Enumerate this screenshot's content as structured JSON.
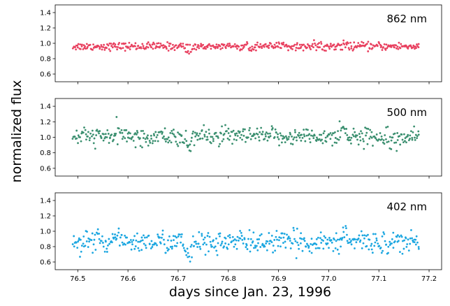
{
  "chart_data": {
    "type": "scatter",
    "xlabel": "days since Jan. 23, 1996",
    "ylabel": "normalized flux",
    "xlim": [
      76.455,
      77.225
    ],
    "x_ticks": [
      76.5,
      76.6,
      76.7,
      76.8,
      76.9,
      77.0,
      77.1,
      77.2
    ],
    "x_tick_labels": [
      "76.5",
      "76.6",
      "76.7",
      "76.8",
      "76.9",
      "77.0",
      "77.1",
      "77.2"
    ],
    "x_range": [
      76.49,
      77.18
    ],
    "ylim": [
      0.5,
      1.5
    ],
    "y_ticks": [
      0.6,
      0.8,
      1.0,
      1.2,
      1.4
    ],
    "y_tick_labels": [
      "0.6",
      "0.8",
      "1.0",
      "1.2",
      "1.4"
    ],
    "grid": false,
    "panels": [
      {
        "label": "862 nm",
        "color": "#e8405f",
        "mean": 0.96,
        "scatter": 0.025,
        "n_points": 480,
        "features": [
          {
            "x": 76.72,
            "depth": 0.06
          },
          {
            "x": 77.03,
            "bump": 0.04
          }
        ]
      },
      {
        "label": "500 nm",
        "color": "#3a8f6f",
        "mean": 1.01,
        "scatter": 0.055,
        "n_points": 480,
        "features": [
          {
            "x": 76.72,
            "depth": 0.1
          },
          {
            "x": 76.58,
            "bump": 0.08
          },
          {
            "x": 77.03,
            "bump": 0.1
          }
        ]
      },
      {
        "label": "402 nm",
        "color": "#1ba6e0",
        "mean": 0.86,
        "scatter": 0.07,
        "n_points": 480,
        "features": [
          {
            "x": 76.72,
            "depth": 0.18
          },
          {
            "x": 76.58,
            "bump": 0.1
          },
          {
            "x": 77.03,
            "bump": 0.12
          }
        ]
      }
    ]
  }
}
